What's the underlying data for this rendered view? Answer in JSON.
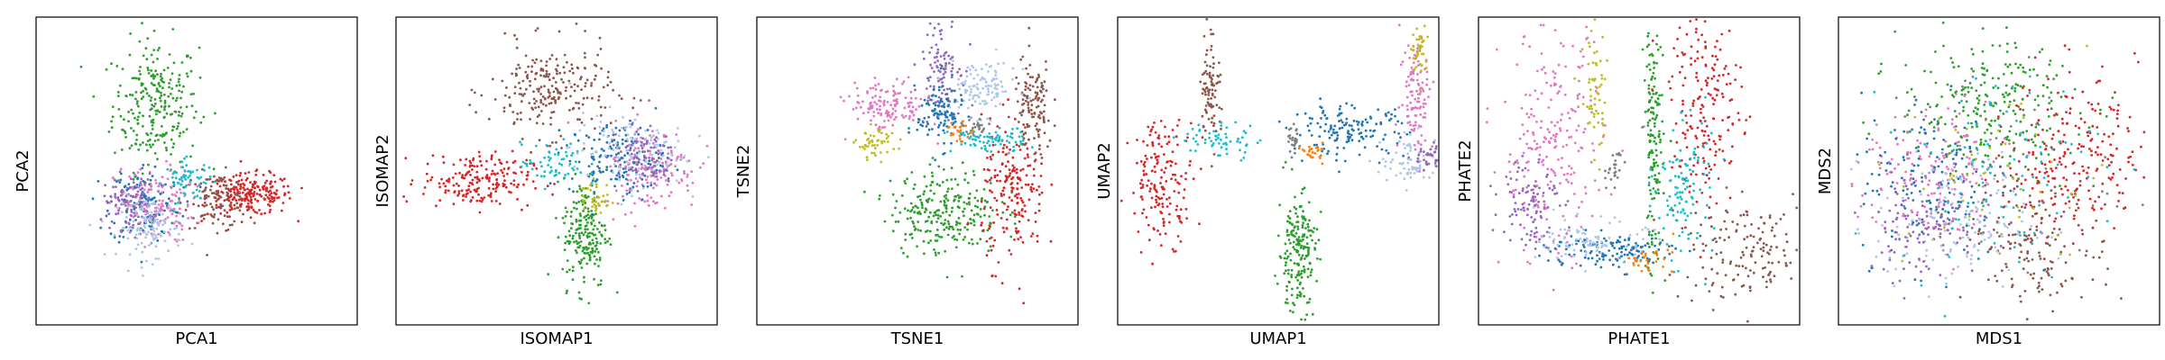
{
  "chart_data": [
    {
      "type": "scatter",
      "xlabel": "PCA1",
      "ylabel": "PCA2",
      "xlim": [
        -4.5,
        4.5
      ],
      "ylim": [
        -4,
        5
      ],
      "grid": false,
      "clusters": [
        {
          "color": "#2ca02c",
          "cx": -1.15,
          "cy": 2.45,
          "sx": 0.6,
          "sy": 0.95,
          "n": 260
        },
        {
          "color": "#d62728",
          "cx": 1.5,
          "cy": -0.2,
          "sx": 0.6,
          "sy": 0.3,
          "n": 220
        },
        {
          "color": "#8c564b",
          "cx": 0.55,
          "cy": -0.35,
          "sx": 0.45,
          "sy": 0.4,
          "n": 110
        },
        {
          "color": "#1f77b4",
          "cx": -1.45,
          "cy": -0.45,
          "sx": 0.5,
          "sy": 0.6,
          "n": 150
        },
        {
          "color": "#e377c2",
          "cx": -1.2,
          "cy": -0.5,
          "sx": 0.55,
          "sy": 0.55,
          "n": 150
        },
        {
          "color": "#9467bd",
          "cx": -1.9,
          "cy": -0.4,
          "sx": 0.35,
          "sy": 0.4,
          "n": 90
        },
        {
          "color": "#aec7e8",
          "cx": -1.3,
          "cy": -1.15,
          "sx": 0.45,
          "sy": 0.45,
          "n": 120
        },
        {
          "color": "#17becf",
          "cx": -0.2,
          "cy": 0.2,
          "sx": 0.35,
          "sy": 0.3,
          "n": 60
        }
      ]
    },
    {
      "type": "scatter",
      "xlabel": "ISOMAP1",
      "ylabel": "ISOMAP2",
      "xlim": [
        -5,
        5
      ],
      "ylim": [
        -5,
        5
      ],
      "grid": false,
      "clusters": [
        {
          "color": "#8c564b",
          "cx": -0.2,
          "cy": 2.6,
          "sx": 0.95,
          "sy": 0.75,
          "n": 230
        },
        {
          "color": "#d62728",
          "cx": -2.5,
          "cy": -0.3,
          "sx": 0.85,
          "sy": 0.45,
          "n": 200
        },
        {
          "color": "#2ca02c",
          "cx": 0.9,
          "cy": -2.0,
          "sx": 0.35,
          "sy": 0.9,
          "n": 200
        },
        {
          "color": "#e377c2",
          "cx": 2.9,
          "cy": 0.1,
          "sx": 0.75,
          "sy": 0.7,
          "n": 160
        },
        {
          "color": "#1f77b4",
          "cx": 1.9,
          "cy": 0.4,
          "sx": 0.75,
          "sy": 0.6,
          "n": 150
        },
        {
          "color": "#aec7e8",
          "cx": 2.2,
          "cy": 0.7,
          "sx": 0.9,
          "sy": 0.6,
          "n": 120
        },
        {
          "color": "#9467bd",
          "cx": 2.7,
          "cy": 0.5,
          "sx": 0.5,
          "sy": 0.5,
          "n": 80
        },
        {
          "color": "#17becf",
          "cx": -0.1,
          "cy": 0.2,
          "sx": 0.5,
          "sy": 0.35,
          "n": 60
        },
        {
          "color": "#bcbd22",
          "cx": 1.2,
          "cy": -0.9,
          "sx": 0.25,
          "sy": 0.3,
          "n": 40
        }
      ]
    },
    {
      "type": "scatter",
      "xlabel": "TSNE1",
      "ylabel": "TSNE2",
      "xlim": [
        -5,
        5
      ],
      "ylim": [
        -5,
        5
      ],
      "grid": false,
      "clusters": [
        {
          "color": "#2ca02c",
          "cx": 0.85,
          "cy": -1.3,
          "sx": 0.85,
          "sy": 0.7,
          "n": 260
        },
        {
          "color": "#d62728",
          "cx": 3.0,
          "cy": -0.7,
          "sx": 0.5,
          "sy": 1.15,
          "n": 200
        },
        {
          "color": "#8c564b",
          "cx": 3.6,
          "cy": 2.0,
          "sx": 0.3,
          "sy": 0.8,
          "n": 120
        },
        {
          "color": "#9467bd",
          "cx": 0.75,
          "cy": 3.6,
          "sx": 0.3,
          "sy": 0.85,
          "n": 110
        },
        {
          "color": "#aec7e8",
          "cx": 2.0,
          "cy": 2.7,
          "sx": 0.55,
          "sy": 0.45,
          "n": 110
        },
        {
          "color": "#e377c2",
          "cx": -0.9,
          "cy": 2.1,
          "sx": 0.6,
          "sy": 0.4,
          "n": 130
        },
        {
          "color": "#1f77b4",
          "cx": 0.7,
          "cy": 1.9,
          "sx": 0.35,
          "sy": 0.55,
          "n": 110
        },
        {
          "color": "#17becf",
          "cx": 2.2,
          "cy": 1.0,
          "sx": 0.6,
          "sy": 0.2,
          "n": 80
        },
        {
          "color": "#bcbd22",
          "cx": -1.3,
          "cy": 0.9,
          "sx": 0.3,
          "sy": 0.25,
          "n": 50
        },
        {
          "color": "#7f7f7f",
          "cx": 1.8,
          "cy": 1.35,
          "sx": 0.2,
          "sy": 0.15,
          "n": 25
        },
        {
          "color": "#ff7f0e",
          "cx": 1.3,
          "cy": 1.3,
          "sx": 0.2,
          "sy": 0.15,
          "n": 25
        }
      ]
    },
    {
      "type": "scatter",
      "xlabel": "UMAP1",
      "ylabel": "UMAP2",
      "xlim": [
        -5,
        5
      ],
      "ylim": [
        -5,
        5
      ],
      "grid": false,
      "clusters": [
        {
          "color": "#d62728",
          "cx": -3.6,
          "cy": -0.3,
          "sx": 0.5,
          "sy": 1.0,
          "n": 170
        },
        {
          "color": "#8c564b",
          "cx": -2.1,
          "cy": 2.8,
          "sx": 0.15,
          "sy": 0.9,
          "n": 90
        },
        {
          "color": "#17becf",
          "cx": -1.8,
          "cy": 1.0,
          "sx": 0.6,
          "sy": 0.3,
          "n": 60
        },
        {
          "color": "#2ca02c",
          "cx": 0.6,
          "cy": -2.6,
          "sx": 0.3,
          "sy": 0.95,
          "n": 200
        },
        {
          "color": "#1f77b4",
          "cx": 2.2,
          "cy": 1.3,
          "sx": 0.9,
          "sy": 0.4,
          "n": 150
        },
        {
          "color": "#e377c2",
          "cx": 4.3,
          "cy": 2.6,
          "sx": 0.25,
          "sy": 1.0,
          "n": 110
        },
        {
          "color": "#bcbd22",
          "cx": 4.4,
          "cy": 4.0,
          "sx": 0.12,
          "sy": 0.4,
          "n": 40
        },
        {
          "color": "#aec7e8",
          "cx": 4.2,
          "cy": 0.3,
          "sx": 0.5,
          "sy": 0.4,
          "n": 70
        },
        {
          "color": "#9467bd",
          "cx": 4.9,
          "cy": 0.4,
          "sx": 0.35,
          "sy": 0.25,
          "n": 60
        },
        {
          "color": "#7f7f7f",
          "cx": 0.5,
          "cy": 1.0,
          "sx": 0.1,
          "sy": 0.2,
          "n": 25
        },
        {
          "color": "#ff7f0e",
          "cx": 1.1,
          "cy": 0.6,
          "sx": 0.15,
          "sy": 0.15,
          "n": 25
        }
      ]
    },
    {
      "type": "scatter",
      "xlabel": "PHATE1",
      "ylabel": "PHATE2",
      "xlim": [
        -5,
        5
      ],
      "ylim": [
        -5,
        5
      ],
      "grid": false,
      "clusters": [
        {
          "color": "#e377c2",
          "cx": -2.7,
          "cy": 0.8,
          "sx": 0.8,
          "sy": 1.9,
          "n": 230
        },
        {
          "color": "#2ca02c",
          "cx": 0.45,
          "cy": 0.8,
          "sx": 0.15,
          "sy": 2.1,
          "n": 160
        },
        {
          "color": "#d62728",
          "cx": 2.1,
          "cy": 2.2,
          "sx": 0.55,
          "sy": 1.7,
          "n": 200
        },
        {
          "color": "#8c564b",
          "cx": 3.3,
          "cy": -2.6,
          "sx": 1.2,
          "sy": 0.8,
          "n": 160
        },
        {
          "color": "#9467bd",
          "cx": -3.4,
          "cy": -0.9,
          "sx": 0.45,
          "sy": 0.8,
          "n": 100
        },
        {
          "color": "#1f77b4",
          "cx": -1.0,
          "cy": -2.6,
          "sx": 1.0,
          "sy": 0.3,
          "n": 130
        },
        {
          "color": "#aec7e8",
          "cx": -1.4,
          "cy": -2.3,
          "sx": 0.8,
          "sy": 0.35,
          "n": 90
        },
        {
          "color": "#17becf",
          "cx": 1.4,
          "cy": -0.6,
          "sx": 0.45,
          "sy": 1.1,
          "n": 110
        },
        {
          "color": "#bcbd22",
          "cx": -1.4,
          "cy": 2.6,
          "sx": 0.2,
          "sy": 1.1,
          "n": 60
        },
        {
          "color": "#7f7f7f",
          "cx": -0.8,
          "cy": 0.1,
          "sx": 0.15,
          "sy": 0.4,
          "n": 25
        },
        {
          "color": "#ff7f0e",
          "cx": 0.3,
          "cy": -2.9,
          "sx": 0.4,
          "sy": 0.2,
          "n": 30
        }
      ]
    },
    {
      "type": "scatter",
      "xlabel": "MDS1",
      "ylabel": "MDS2",
      "xlim": [
        -5,
        5
      ],
      "ylim": [
        -5,
        5
      ],
      "grid": false,
      "clusters": [
        {
          "color": "#2ca02c",
          "cx": -0.3,
          "cy": 2.0,
          "sx": 1.4,
          "sy": 1.1,
          "n": 260
        },
        {
          "color": "#d62728",
          "cx": 2.3,
          "cy": 0.6,
          "sx": 1.0,
          "sy": 1.35,
          "n": 230
        },
        {
          "color": "#8c564b",
          "cx": 1.2,
          "cy": -2.4,
          "sx": 1.1,
          "sy": 1.0,
          "n": 150
        },
        {
          "color": "#e377c2",
          "cx": -2.0,
          "cy": -0.4,
          "sx": 1.1,
          "sy": 1.2,
          "n": 180
        },
        {
          "color": "#aec7e8",
          "cx": -1.5,
          "cy": -1.7,
          "sx": 1.2,
          "sy": 1.1,
          "n": 150
        },
        {
          "color": "#1f77b4",
          "cx": -2.0,
          "cy": -0.2,
          "sx": 1.2,
          "sy": 1.4,
          "n": 150
        },
        {
          "color": "#9467bd",
          "cx": -2.4,
          "cy": -1.7,
          "sx": 0.9,
          "sy": 0.9,
          "n": 110
        },
        {
          "color": "#17becf",
          "cx": 0.0,
          "cy": 0.1,
          "sx": 1.6,
          "sy": 1.6,
          "n": 90
        },
        {
          "color": "#bcbd22",
          "cx": 0.2,
          "cy": -0.3,
          "sx": 1.6,
          "sy": 1.6,
          "n": 50
        },
        {
          "color": "#7f7f7f",
          "cx": 0.0,
          "cy": 0.0,
          "sx": 1.8,
          "sy": 1.8,
          "n": 40
        }
      ]
    }
  ]
}
